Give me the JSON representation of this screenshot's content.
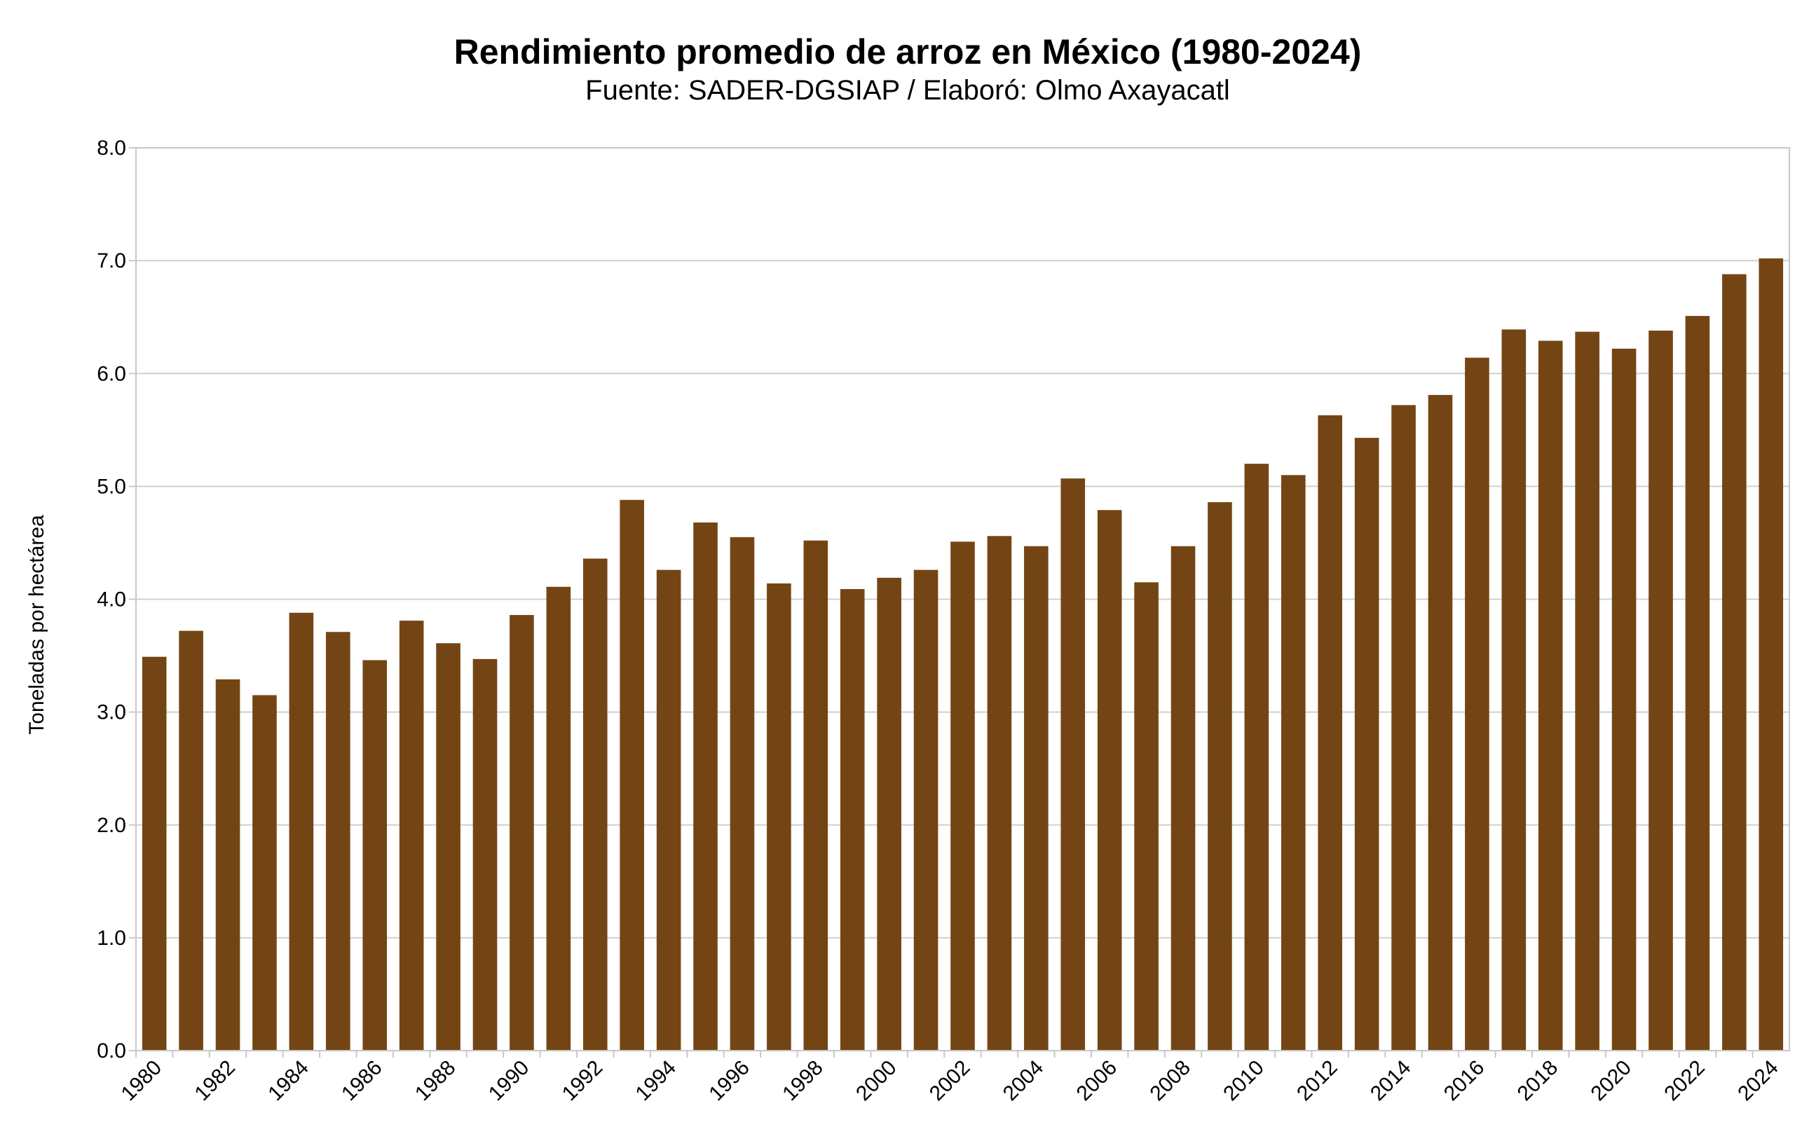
{
  "chart_data": {
    "type": "bar",
    "title": "Rendimiento promedio de arroz en México (1980-2024)",
    "subtitle": "Fuente: SADER-DGSIAP / Elaboró: Olmo Axayacatl",
    "xlabel": "",
    "ylabel": "Toneladas por hectárea",
    "ylim": [
      0,
      8
    ],
    "yticks": [
      "0.0",
      "1.0",
      "2.0",
      "3.0",
      "4.0",
      "5.0",
      "6.0",
      "7.0",
      "8.0"
    ],
    "grid": true,
    "legend": "none",
    "bar_color": "#744514",
    "categories": [
      "1980",
      "1981",
      "1982",
      "1983",
      "1984",
      "1985",
      "1986",
      "1987",
      "1988",
      "1989",
      "1990",
      "1991",
      "1992",
      "1993",
      "1994",
      "1995",
      "1996",
      "1997",
      "1998",
      "1999",
      "2000",
      "2001",
      "2002",
      "2003",
      "2004",
      "2005",
      "2006",
      "2007",
      "2008",
      "2009",
      "2010",
      "2011",
      "2012",
      "2013",
      "2014",
      "2015",
      "2016",
      "2017",
      "2018",
      "2019",
      "2020",
      "2021",
      "2022",
      "2023",
      "2024"
    ],
    "xtick_labels": [
      "1980",
      "1982",
      "1984",
      "1986",
      "1988",
      "1990",
      "1992",
      "1994",
      "1996",
      "1998",
      "2000",
      "2002",
      "2004",
      "2006",
      "2008",
      "2010",
      "2012",
      "2014",
      "2016",
      "2018",
      "2020",
      "2022",
      "2024"
    ],
    "values": [
      3.49,
      3.72,
      3.29,
      3.15,
      3.88,
      3.71,
      3.46,
      3.81,
      3.61,
      3.47,
      3.86,
      4.11,
      4.36,
      4.88,
      4.26,
      4.68,
      4.55,
      4.14,
      4.52,
      4.09,
      4.19,
      4.26,
      4.51,
      4.56,
      4.47,
      5.07,
      4.79,
      4.15,
      4.47,
      4.86,
      5.2,
      5.1,
      5.63,
      5.43,
      5.72,
      5.81,
      6.14,
      6.39,
      6.29,
      6.37,
      6.22,
      6.38,
      6.51,
      6.88,
      7.02
    ]
  }
}
